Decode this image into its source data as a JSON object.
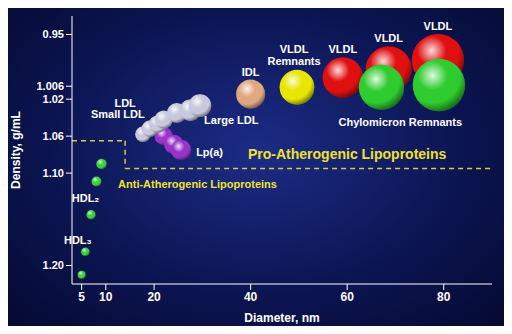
{
  "chart_data": {
    "type": "scatter",
    "x_label": "Diameter, nm",
    "y_label": "Density, g/mL",
    "xlim": [
      3,
      90
    ],
    "xticks": [
      5,
      10,
      20,
      40,
      60,
      80
    ],
    "ylim": [
      1.22,
      0.93
    ],
    "yticks": [
      0.95,
      1.006,
      1.02,
      1.06,
      {
        "value": 1.1,
        "label": "1.10"
      },
      {
        "value": 1.2,
        "label": "1.20"
      }
    ],
    "grid": false,
    "tick_labels": true,
    "marker": "bubble",
    "series": [
      {
        "name": "HDL₃",
        "color": "#3ecf3e",
        "x": [
          5,
          5.76
        ],
        "values": [
          1.21,
          1.185
        ]
      },
      {
        "name": "HDL₂",
        "color": "#3ecf3e",
        "x": [
          6.94,
          8.06,
          9.1
        ],
        "values": [
          1.145,
          1.109,
          1.09
        ]
      },
      {
        "name": "Lp(a)",
        "color": "#9933cc",
        "x": [
          22,
          24.1,
          25.6
        ],
        "values": [
          1.06,
          1.069,
          1.075
        ]
      },
      {
        "name": "Large LDL",
        "color": "#c8c8dc",
        "x": [
          17.7,
          19.1,
          20.7,
          22,
          24.7,
          27.5,
          29.5
        ],
        "values": [
          1.058,
          1.052,
          1.047,
          1.042,
          1.035,
          1.032,
          1.027
        ]
      },
      {
        "name": "IDL",
        "color": "#e0a880",
        "x": [
          40
        ],
        "values": [
          1.0145
        ]
      },
      {
        "name": "VLDL Remnants",
        "color": "#e6e600",
        "x": [
          49.6
        ],
        "values": [
          1.0071
        ]
      },
      {
        "name": "VLDL",
        "color": "#e01010",
        "x": [
          59.1,
          68.6,
          78.8
        ],
        "values": [
          0.9966,
          0.9878,
          0.9777
        ]
      },
      {
        "name": "Chylomicron Remnants",
        "color": "#2ecc2e",
        "x": [
          67.1,
          79
        ],
        "values": [
          1.007,
          1.0047
        ]
      }
    ],
    "annotations": [
      {
        "text": "HDL₃",
        "x": 4.2,
        "y": 1.172,
        "color": "#ffffff"
      },
      {
        "text": "HDL₂",
        "x": 5.8,
        "y": 1.127,
        "color": "#ffffff"
      },
      {
        "text": "Anti-Atherogenic Lipoproteins",
        "x": 29,
        "y": 1.112,
        "color": "#f0e030"
      },
      {
        "text": "Pro-Atherogenic Lipoproteins",
        "x": 60,
        "y": 1.079,
        "color": "#f0e030"
      },
      {
        "text": "Lp(a)",
        "x": 31.5,
        "y": 1.077,
        "color": "#ffffff"
      },
      {
        "text": "Small LDL",
        "x": 12.5,
        "y": 1.036,
        "color": "#ffffff"
      },
      {
        "text": "LDL",
        "x": 14,
        "y": 1.024,
        "color": "#ffffff"
      },
      {
        "text": "Large LDL",
        "x": 36,
        "y": 1.043,
        "color": "#ffffff"
      },
      {
        "text": "IDL",
        "x": 40,
        "y": 0.991,
        "color": "#ffffff"
      },
      {
        "text": "VLDL Remnants",
        "x": 49,
        "y": 0.972,
        "color": "#ffffff"
      },
      {
        "text": "VLDL",
        "x": 59.1,
        "y": 0.966,
        "color": "#ffffff"
      },
      {
        "text": "VLDL",
        "x": 68.6,
        "y": 0.954,
        "color": "#ffffff"
      },
      {
        "text": "VLDL",
        "x": 78.8,
        "y": 0.941,
        "color": "#ffffff"
      },
      {
        "text": "Chylomicron Remnants",
        "x": 71,
        "y": 1.045,
        "color": "#ffffff"
      }
    ],
    "boundary": {
      "x": [
        3,
        14,
        14,
        90
      ],
      "y": [
        1.065,
        1.065,
        1.095,
        1.095
      ]
    }
  }
}
